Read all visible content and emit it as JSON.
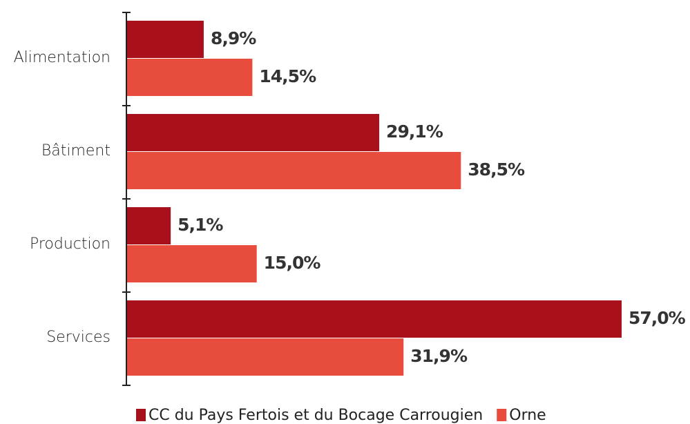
{
  "chart_data": {
    "type": "bar",
    "orientation": "horizontal",
    "categories": [
      "Alimentation",
      "Bâtiment",
      "Production",
      "Services"
    ],
    "series": [
      {
        "name": "CC du Pays Fertois et du Bocage Carrougien",
        "color": "#a8111c",
        "values": [
          8.9,
          29.1,
          5.1,
          57.0
        ],
        "value_labels": [
          "8,9%",
          "29,1%",
          "5,1%",
          "57,0%"
        ]
      },
      {
        "name": "Orne",
        "color": "#e84c3d",
        "values": [
          14.5,
          38.5,
          15.0,
          31.9
        ],
        "value_labels": [
          "14,5%",
          "38,5%",
          "15,0%",
          "31,9%"
        ]
      }
    ],
    "legend": "bottom"
  }
}
